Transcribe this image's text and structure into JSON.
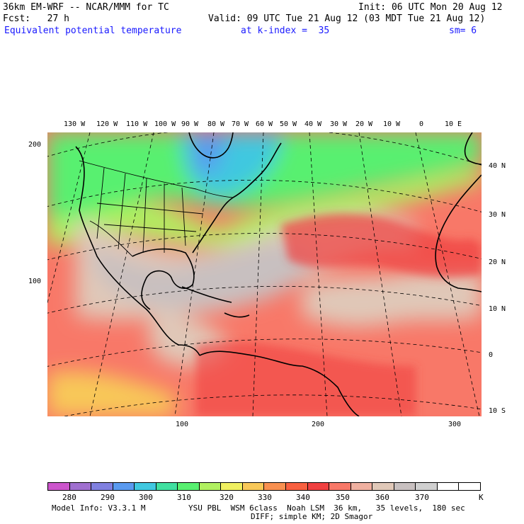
{
  "header": {
    "line1_left": "36km EM-WRF -- NCAR/MMM for TC",
    "line1_right": "Init: 06 UTC Mon 20 Aug 12",
    "line2_left": "Fcst:   27 h",
    "line2_right": "Valid: 09 UTC Tue 21 Aug 12 (03 MDT Tue 21 Aug 12)",
    "field_name": "Equivalent potential temperature",
    "level": "at k-index =  35",
    "smoothing": "sm= 6"
  },
  "map": {
    "projection": "lambert conformal (Atlantic basin)",
    "longitude_labels": [
      "130 W",
      "120 W",
      "110 W",
      "100 W",
      "90 W",
      "80 W",
      "70 W",
      "60 W",
      "50 W",
      "40 W",
      "30 W",
      "20 W",
      "10 W",
      "0",
      "10 E"
    ],
    "latitude_labels": [
      "40 N",
      "30 N",
      "20 N",
      "10 N",
      "0",
      "10 S"
    ],
    "grid_y_labels": [
      "200",
      "100"
    ],
    "grid_x_labels": [
      "100",
      "200",
      "300"
    ]
  },
  "colorbar": {
    "colors": [
      "#cc55cc",
      "#a070d0",
      "#8080e0",
      "#5a9af0",
      "#40c8e0",
      "#40e0a0",
      "#58f070",
      "#b0f060",
      "#f0f060",
      "#f8c858",
      "#f89050",
      "#f86040",
      "#f04040",
      "#f87868",
      "#f0b0a0",
      "#e0c8b8",
      "#c8c0c0",
      "#d0d0d0",
      "#ffffff",
      "#ffffff"
    ],
    "labels": [
      "280",
      "290",
      "300",
      "310",
      "320",
      "330",
      "340",
      "350",
      "360",
      "370"
    ],
    "unit": "K"
  },
  "footer": {
    "line1_left": "Model Info: V3.3.1 M",
    "line1_right": "YSU PBL  WSM 6class  Noah LSM  36 km,   35 levels,  180 sec",
    "line2": "DIFF; simple KM; 2D Smagor"
  }
}
